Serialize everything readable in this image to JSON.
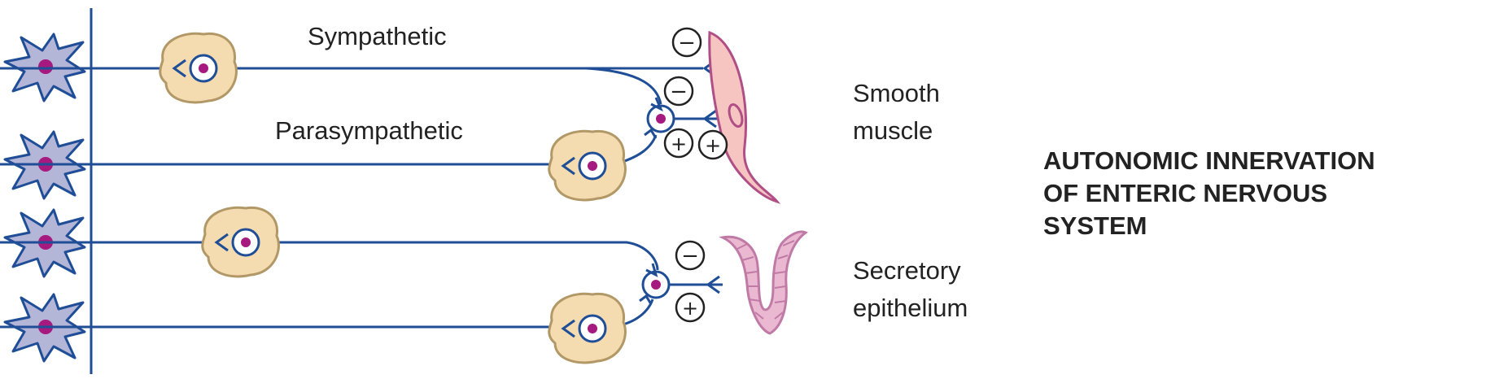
{
  "labels": {
    "sympathetic": "Sympathetic",
    "parasympathetic": "Parasympathetic",
    "target_muscle_line1": "Smooth",
    "target_muscle_line2": "muscle",
    "target_secretory_line1": "Secretory",
    "target_secretory_line2": "epithelium"
  },
  "title_lines": [
    "AUTONOMIC INNERVATION",
    "OF ENTERIC NERVOUS",
    "SYSTEM"
  ],
  "symbols": {
    "minus": "−",
    "plus": "+"
  },
  "colors": {
    "nerve": "#1f4e96",
    "neuron_fill": "#b4b6d8",
    "ganglion_fill": "#f4dcb0",
    "ganglion_stroke": "#b39867",
    "nucleus": "#a6197f",
    "muscle_fill": "#f6c4c1",
    "muscle_stroke": "#b04e86",
    "epithelium_fill": "#eab9d1"
  }
}
